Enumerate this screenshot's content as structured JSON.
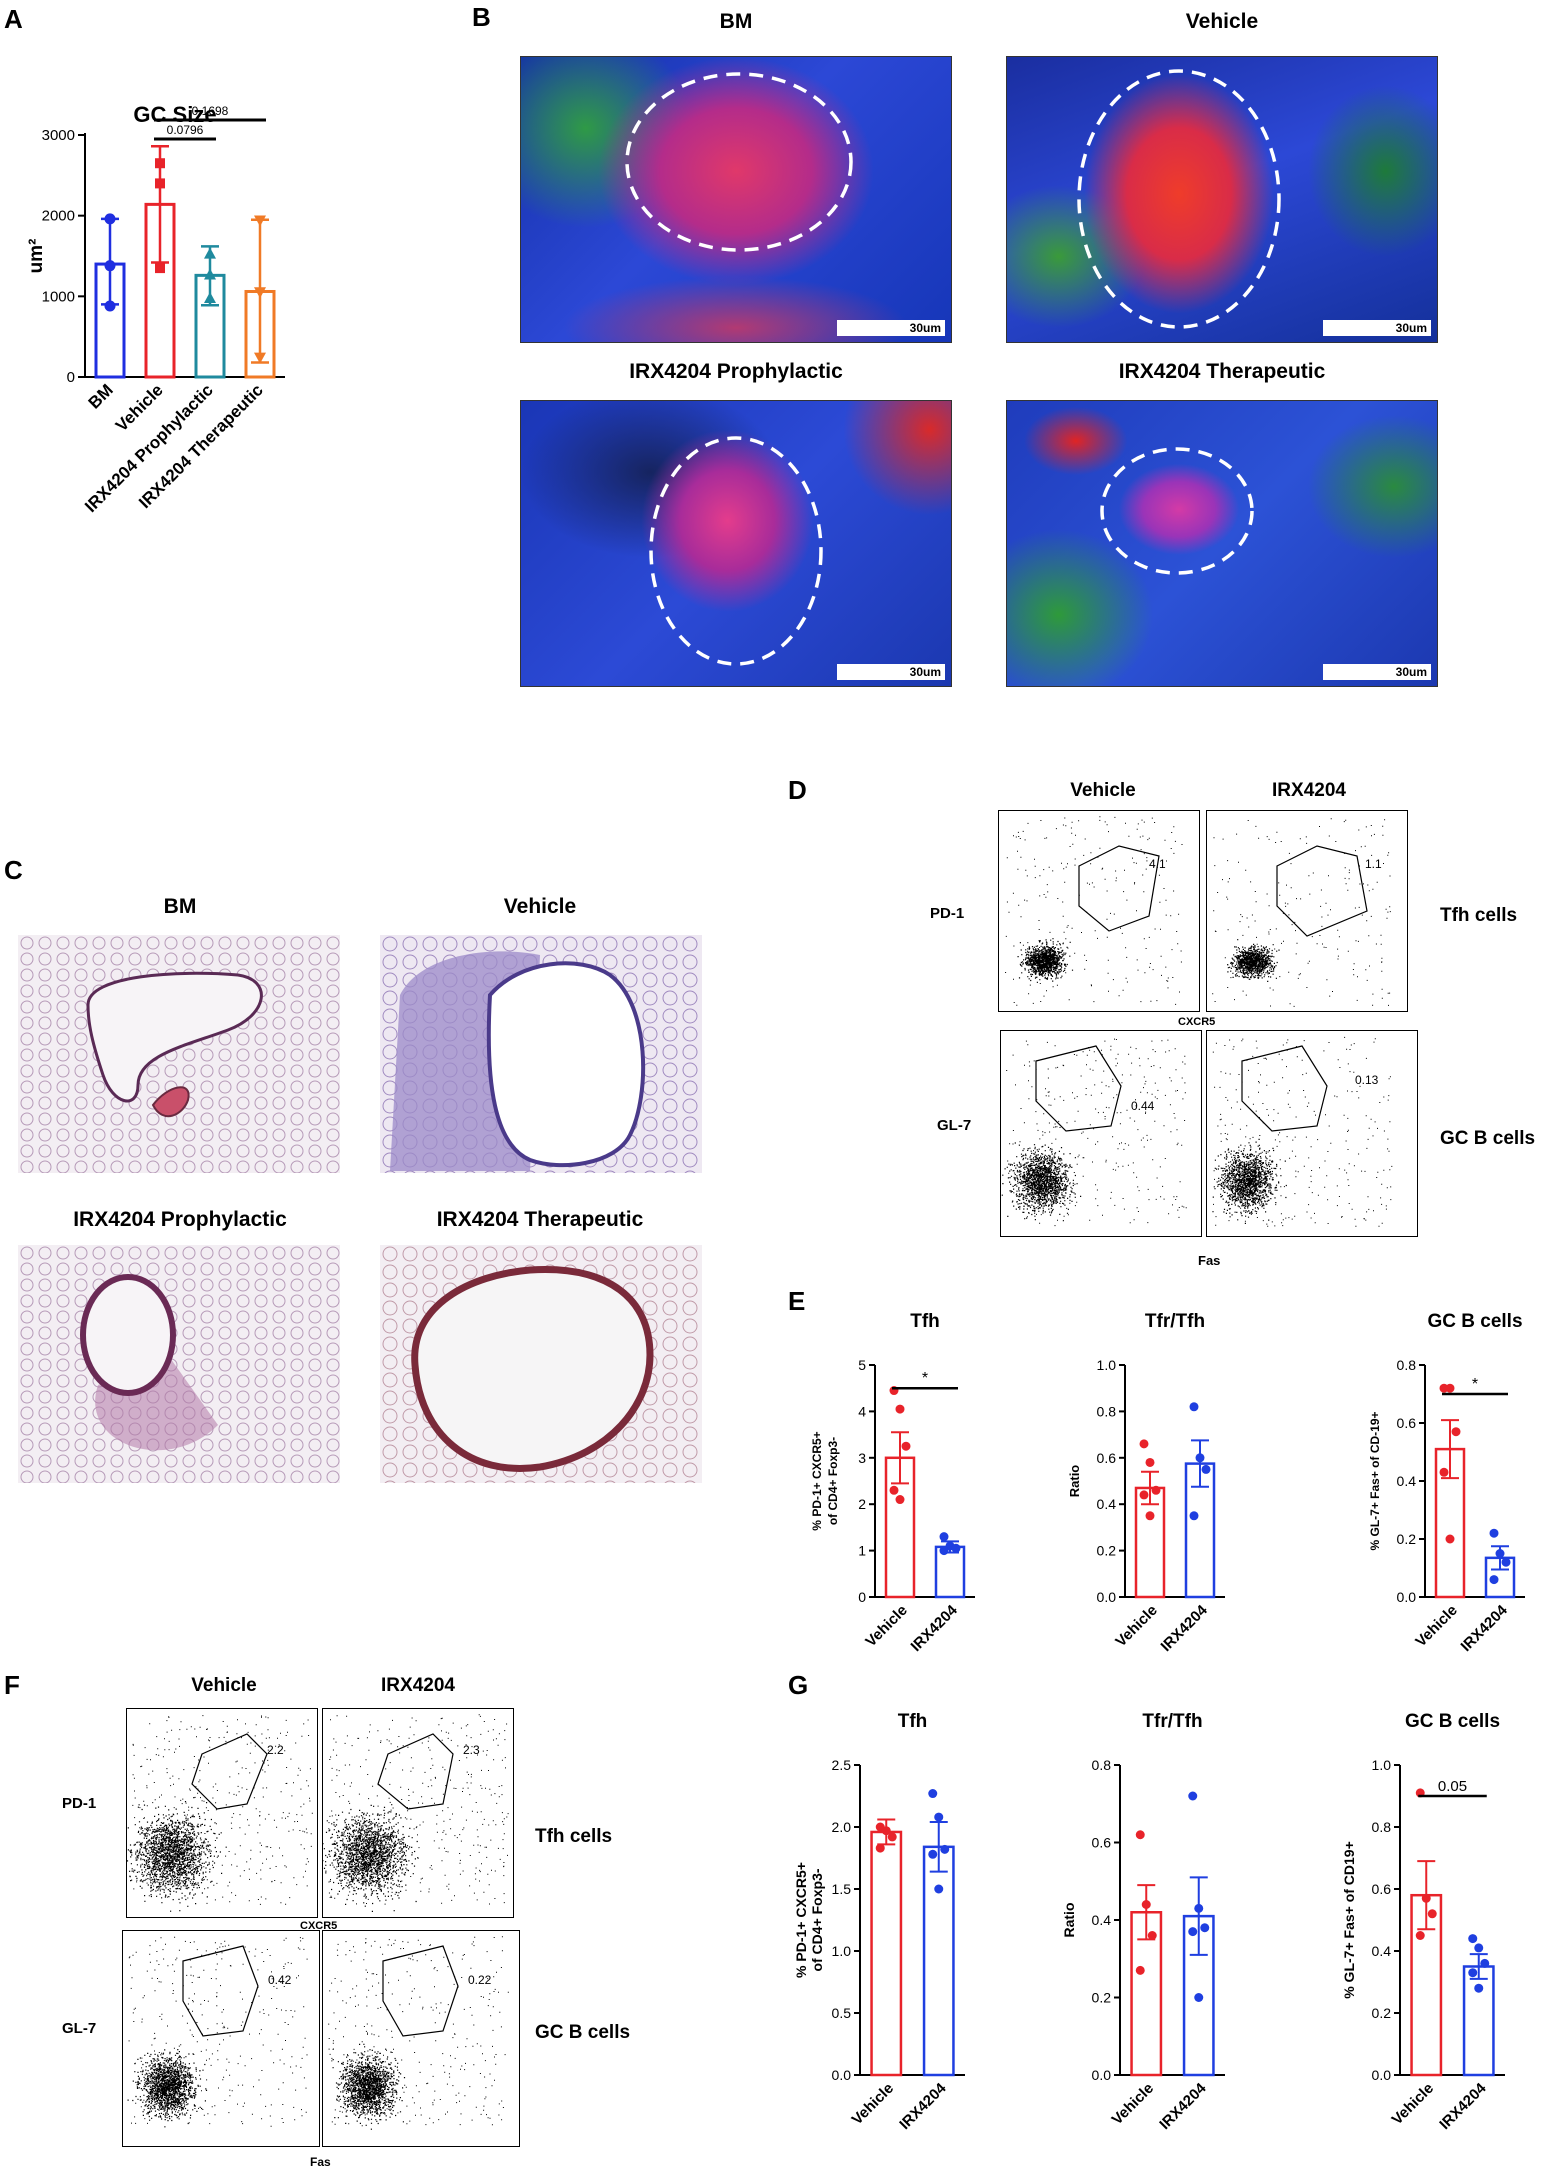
{
  "panels": {
    "A": "A",
    "B": "B",
    "C": "C",
    "D": "D",
    "E": "E",
    "F": "F",
    "G": "G"
  },
  "panelB": {
    "titles": [
      "BM",
      "Vehicle",
      "IRX4204 Prophylactic",
      "IRX4204 Therapeutic"
    ],
    "scale_label": "30um"
  },
  "panelC": {
    "titles": [
      "BM",
      "Vehicle",
      "IRX4204 Prophylactic",
      "IRX4204 Therapeutic"
    ]
  },
  "panelD": {
    "columns": [
      "Vehicle",
      "IRX4204"
    ],
    "row_labels": [
      "PD-1",
      "GL-7"
    ],
    "axis_labels": [
      "CXCR5",
      "Fas"
    ],
    "gate_values": [
      "4.1",
      "1.1",
      "0.44",
      "0.13"
    ],
    "right_labels": [
      "Tfh cells",
      "GC B cells"
    ]
  },
  "panelF": {
    "columns": [
      "Vehicle",
      "IRX4204"
    ],
    "row_labels": [
      "PD-1",
      "GL-7"
    ],
    "axis_labels": [
      "CXCR5",
      "Fas"
    ],
    "gate_values": [
      "2.2",
      "2.3",
      "0.42",
      "0.22"
    ],
    "right_labels": [
      "Tfh cells",
      "GC B cells"
    ]
  },
  "colors": {
    "bm": "#1f2ee0",
    "vehicle": "#e8232a",
    "prophylactic": "#1f8a9e",
    "therapeutic": "#f07a26",
    "red": "#e8232a",
    "blue": "#1f3fe0"
  },
  "chart_data": [
    {
      "id": "A",
      "type": "bar",
      "title": "GC Size",
      "ylabel": "um²",
      "categories": [
        "BM",
        "Vehicle",
        "IRX4204 Prophylactic",
        "IRX4204 Therapeutic"
      ],
      "values": [
        1400,
        2140,
        1260,
        1060
      ],
      "errors": [
        [
          900,
          1960
        ],
        [
          1420,
          2860
        ],
        [
          890,
          1620
        ],
        [
          180,
          1950
        ]
      ],
      "points": [
        [
          1960,
          1380,
          880
        ],
        [
          2650,
          2400,
          1350
        ],
        [
          1530,
          1270,
          980
        ],
        [
          1940,
          1050,
          240
        ]
      ],
      "markers": [
        "circle",
        "square",
        "triangle",
        "inverted-triangle"
      ],
      "yticks": [
        0,
        1000,
        2000,
        3000
      ],
      "ylim": [
        0,
        3000
      ],
      "annotations": [
        {
          "text": "0.1698",
          "from": 1,
          "to": 3
        },
        {
          "text": "0.0796",
          "from": 1,
          "to": 2
        }
      ]
    },
    {
      "id": "E-Tfh",
      "type": "bar",
      "title": "Tfh",
      "ylabel": "% PD-1+ CXCR5+ of CD4+ Foxp3-",
      "categories": [
        "Vehicle",
        "IRX4204"
      ],
      "values": [
        3.0,
        1.08
      ],
      "errors": [
        0.55,
        0.12
      ],
      "points": [
        [
          4.45,
          4.05,
          3.25,
          2.3,
          2.1
        ],
        [
          1.3,
          1.1,
          1.05,
          1.0
        ]
      ],
      "yticks": [
        0,
        1,
        2,
        3,
        4,
        5
      ],
      "ytick_labels": [
        "0",
        "1",
        "2",
        "3",
        "4",
        "5"
      ],
      "ylim": [
        0,
        5
      ],
      "annotation": "*"
    },
    {
      "id": "E-TfrTfh",
      "type": "bar",
      "title": "Tfr/Tfh",
      "ylabel": "Ratio",
      "categories": [
        "Vehicle",
        "IRX4204"
      ],
      "values": [
        0.47,
        0.575
      ],
      "errors": [
        0.07,
        0.1
      ],
      "points": [
        [
          0.66,
          0.58,
          0.46,
          0.44,
          0.35
        ],
        [
          0.82,
          0.6,
          0.55,
          0.35
        ]
      ],
      "yticks": [
        0,
        0.2,
        0.4,
        0.6,
        0.8,
        1.0
      ],
      "ytick_labels": [
        "0.0",
        "0.2",
        "0.4",
        "0.6",
        "0.8",
        "1.0"
      ],
      "ylim": [
        0,
        1.0
      ]
    },
    {
      "id": "E-GCB",
      "type": "bar",
      "title": "GC B cells",
      "ylabel": "% GL-7+ Fas+ of CD-19+",
      "categories": [
        "Vehicle",
        "IRX4204"
      ],
      "values": [
        0.51,
        0.135
      ],
      "errors": [
        0.1,
        0.04
      ],
      "points": [
        [
          0.72,
          0.72,
          0.57,
          0.43,
          0.2
        ],
        [
          0.22,
          0.15,
          0.12,
          0.06
        ]
      ],
      "yticks": [
        0,
        0.2,
        0.4,
        0.6,
        0.8
      ],
      "ytick_labels": [
        "0.0",
        "0.2",
        "0.4",
        "0.6",
        "0.8"
      ],
      "ylim": [
        0,
        0.8
      ],
      "annotation": "*"
    },
    {
      "id": "G-Tfh",
      "type": "bar",
      "title": "Tfh",
      "ylabel": "% PD-1+ CXCR5+ of CD4+ Foxp3-",
      "categories": [
        "Vehicle",
        "IRX4204"
      ],
      "values": [
        1.96,
        1.84
      ],
      "errors": [
        0.1,
        0.2
      ],
      "points": [
        [
          2.0,
          1.97,
          1.92,
          1.83
        ],
        [
          2.27,
          2.08,
          1.82,
          1.78,
          1.5
        ]
      ],
      "yticks": [
        0,
        0.5,
        1.0,
        1.5,
        2.0,
        2.5
      ],
      "ytick_labels": [
        "0.0",
        "0.5",
        "1.0",
        "1.5",
        "2.0",
        "2.5"
      ],
      "ylim": [
        0,
        2.5
      ]
    },
    {
      "id": "G-TfrTfh",
      "type": "bar",
      "title": "Tfr/Tfh",
      "ylabel": "Ratio",
      "categories": [
        "Vehicle",
        "IRX4204"
      ],
      "values": [
        0.42,
        0.41
      ],
      "errors": [
        0.07,
        0.1
      ],
      "points": [
        [
          0.62,
          0.44,
          0.36,
          0.27
        ],
        [
          0.72,
          0.43,
          0.38,
          0.37,
          0.2
        ]
      ],
      "yticks": [
        0,
        0.2,
        0.4,
        0.6,
        0.8
      ],
      "ytick_labels": [
        "0.0",
        "0.2",
        "0.4",
        "0.6",
        "0.8"
      ],
      "ylim": [
        0,
        0.8
      ]
    },
    {
      "id": "G-GCB",
      "type": "bar",
      "title": "GC B cells",
      "ylabel": "% GL-7+ Fas+ of CD19+",
      "categories": [
        "Vehicle",
        "IRX4204"
      ],
      "values": [
        0.58,
        0.35
      ],
      "errors": [
        0.11,
        0.04
      ],
      "points": [
        [
          0.91,
          0.57,
          0.52,
          0.45
        ],
        [
          0.44,
          0.41,
          0.36,
          0.33,
          0.28
        ]
      ],
      "yticks": [
        0,
        0.2,
        0.4,
        0.6,
        0.8,
        1.0
      ],
      "ytick_labels": [
        "0.0",
        "0.2",
        "0.4",
        "0.6",
        "0.8",
        "1.0"
      ],
      "ylim": [
        0,
        1.0
      ],
      "annotation": "0.05"
    }
  ]
}
